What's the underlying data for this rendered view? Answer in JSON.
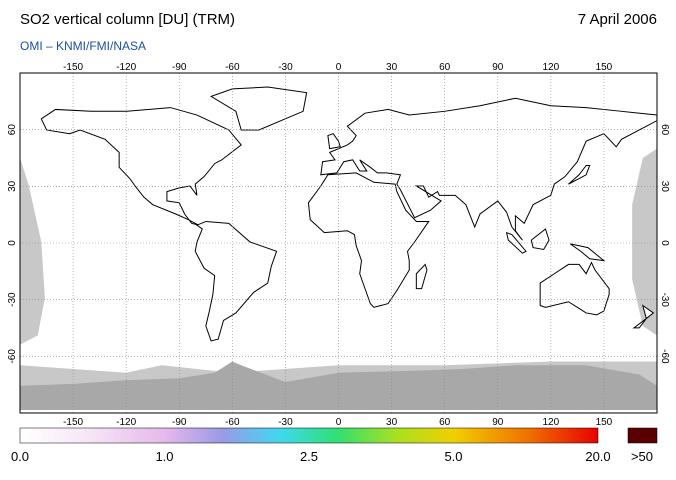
{
  "header": {
    "title": "SO2 vertical column [DU] (TRM)",
    "date": "7 April 2006",
    "source": "OMI  –  KNMI/FMI/NASA"
  },
  "map": {
    "lon_ticks": [
      -150,
      -120,
      -90,
      -60,
      -30,
      0,
      30,
      60,
      90,
      120,
      150
    ],
    "lat_ticks": [
      60,
      30,
      0,
      -30,
      -60
    ]
  },
  "colorbar": {
    "labels": [
      "0.0",
      "1.0",
      "2.5",
      "5.0",
      "20.0"
    ],
    "overflow": ">50"
  }
}
